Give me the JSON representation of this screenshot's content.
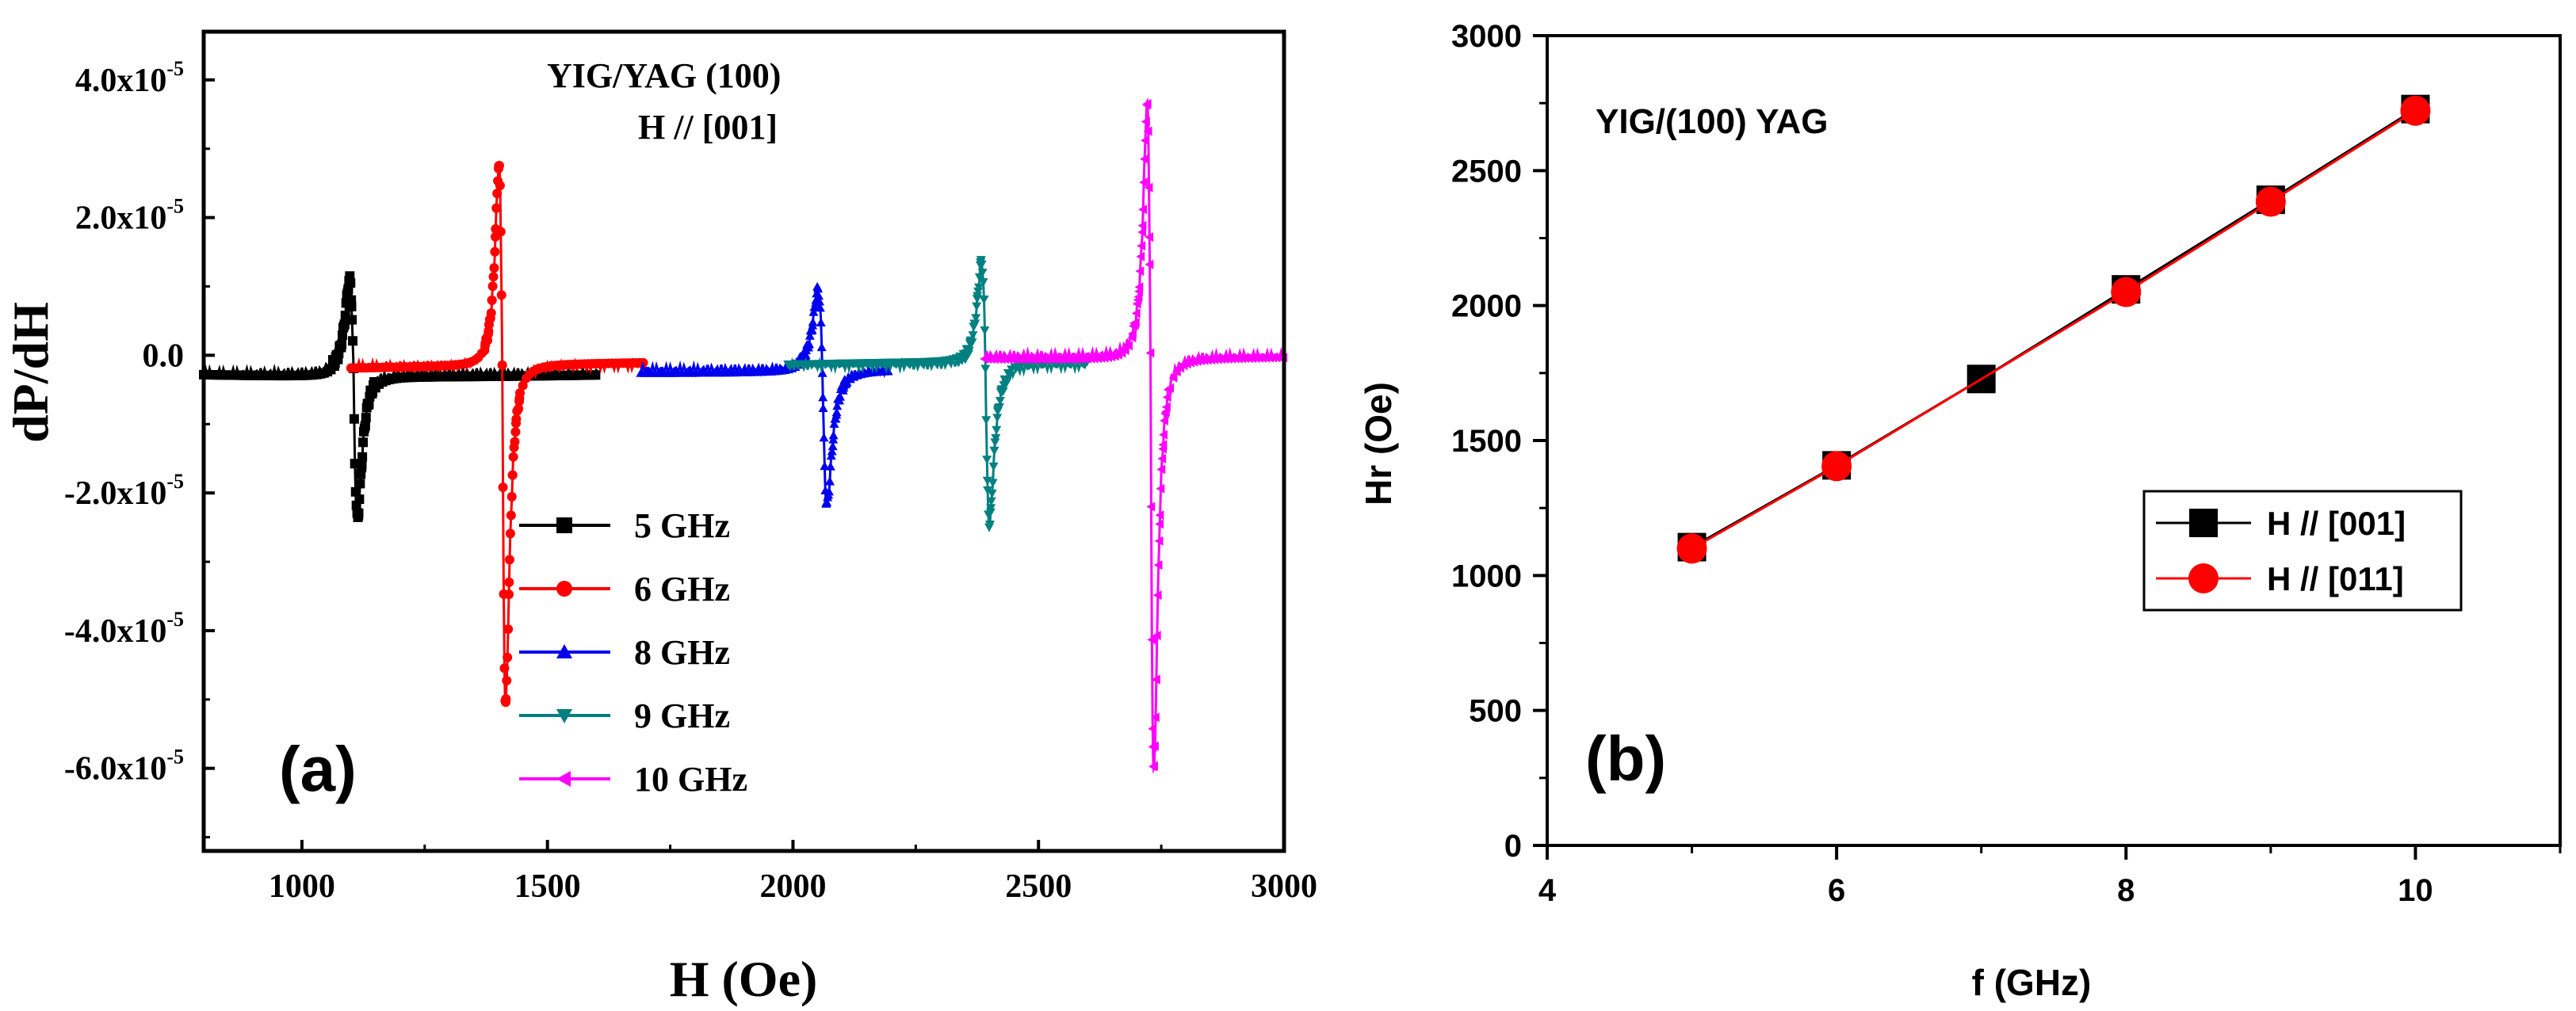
{
  "chart_data": [
    {
      "type": "line",
      "panel_label": "(a)",
      "title": "YIG/YAG (100)",
      "subtitle": "H // [001]",
      "xlabel": "H (Oe)",
      "ylabel": "dP/dH",
      "xlim": [
        800,
        3000
      ],
      "ylim": [
        -7.2e-05,
        4.7e-05
      ],
      "x_ticks": [
        1000,
        1500,
        2000,
        2500,
        3000
      ],
      "x_tick_labels": [
        "1000",
        "1500",
        "2000",
        "2500",
        "3000"
      ],
      "y_ticks": [
        4e-05,
        2e-05,
        0.0,
        -2e-05,
        -4e-05,
        -6e-05
      ],
      "y_tick_labels": [
        {
          "mantissa": "4.0x10",
          "exp": "-5"
        },
        {
          "mantissa": "2.0x10",
          "exp": "-5"
        },
        {
          "mantissa": "0.0",
          "exp": ""
        },
        {
          "mantissa": "-2.0x10",
          "exp": "-5"
        },
        {
          "mantissa": "-4.0x10",
          "exp": "-5"
        },
        {
          "mantissa": "-6.0x10",
          "exp": "-5"
        }
      ],
      "legend_position": "lower-center",
      "series": [
        {
          "name": "5 GHz",
          "color": "#000000",
          "marker": "square",
          "x_range": [
            800,
            1600
          ],
          "resonance_field": 1105,
          "linewidth": 14,
          "peak": 1.1e-05,
          "trough": -2.35e-05,
          "baseline": -2.5e-06
        },
        {
          "name": "6 GHz",
          "color": "#ff0000",
          "marker": "circle",
          "x_range": [
            1100,
            1700
          ],
          "resonance_field": 1408,
          "linewidth": 12,
          "peak": 2.75e-05,
          "trough": -5.05e-05,
          "baseline": -1.5e-06
        },
        {
          "name": "8 GHz",
          "color": "#0000ee",
          "marker": "triangle-up",
          "x_range": [
            1690,
            2200
          ],
          "resonance_field": 2060,
          "linewidth": 16,
          "peak": 9.5e-06,
          "trough": -2.15e-05,
          "baseline": -2e-06
        },
        {
          "name": "9 GHz",
          "color": "#008080",
          "marker": "triangle-down",
          "x_range": [
            1990,
            2600
          ],
          "resonance_field": 2392,
          "linewidth": 14,
          "peak": 1.35e-05,
          "trough": -2.45e-05,
          "baseline": -1.5e-06
        },
        {
          "name": "10 GHz",
          "color": "#ff00ff",
          "marker": "triangle-left",
          "x_range": [
            2390,
            3000
          ],
          "resonance_field": 2728,
          "linewidth": 12,
          "peak": 3.65e-05,
          "trough": -6.05e-05,
          "baseline": 0.0
        }
      ]
    },
    {
      "type": "line",
      "panel_label": "(b)",
      "title": "YIG/(100) YAG",
      "xlabel": "f (GHz)",
      "ylabel": "Hr (Oe)",
      "xlim": [
        4,
        11
      ],
      "ylim": [
        0,
        3000
      ],
      "x_ticks": [
        4,
        6,
        8,
        10
      ],
      "x_tick_labels": [
        "4",
        "6",
        "8",
        "10"
      ],
      "y_ticks": [
        0,
        500,
        1000,
        1500,
        2000,
        2500,
        3000
      ],
      "y_tick_labels": [
        "0",
        "500",
        "1000",
        "1500",
        "2000",
        "2500",
        "3000"
      ],
      "legend_position": "right",
      "series": [
        {
          "name": "H // [001]",
          "color": "#000000",
          "marker": "square",
          "x": [
            5,
            6,
            7,
            8,
            9,
            10
          ],
          "y": [
            1105,
            1408,
            1728,
            2060,
            2392,
            2728
          ]
        },
        {
          "name": "H // [011]",
          "color": "#ff0000",
          "marker": "circle",
          "x": [
            5,
            6,
            8,
            9,
            10
          ],
          "y": [
            1100,
            1405,
            2050,
            2385,
            2722
          ]
        }
      ]
    }
  ]
}
